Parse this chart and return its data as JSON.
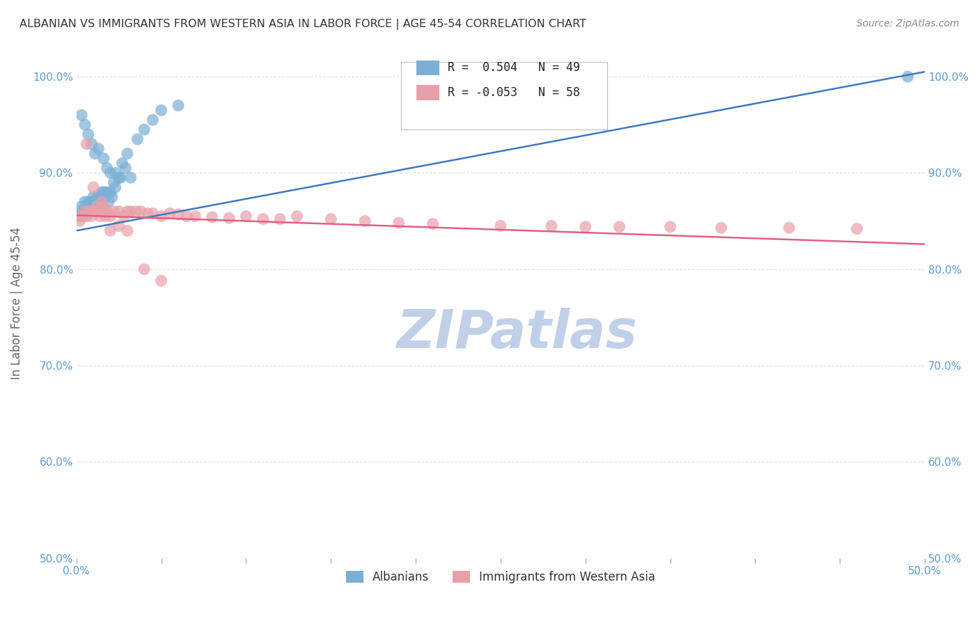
{
  "title": "ALBANIAN VS IMMIGRANTS FROM WESTERN ASIA IN LABOR FORCE | AGE 45-54 CORRELATION CHART",
  "source": "Source: ZipAtlas.com",
  "ylabel": "In Labor Force | Age 45-54",
  "xlim": [
    0.0,
    0.5
  ],
  "ylim": [
    0.5,
    1.03
  ],
  "xticks": [
    0.0,
    0.05,
    0.1,
    0.15,
    0.2,
    0.25,
    0.3,
    0.35,
    0.4,
    0.45,
    0.5
  ],
  "xtick_labels": [
    "0.0%",
    "",
    "",
    "",
    "",
    "",
    "",
    "",
    "",
    "",
    "50.0%"
  ],
  "yticks": [
    0.5,
    0.6,
    0.7,
    0.8,
    0.9,
    1.0
  ],
  "ytick_labels": [
    "50.0%",
    "60.0%",
    "70.0%",
    "80.0%",
    "90.0%",
    "100.0%"
  ],
  "blue_color": "#7bafd4",
  "pink_color": "#e8a0a8",
  "blue_line_color": "#3d78c0",
  "pink_line_color": "#e06080",
  "legend_blue_R": " 0.504",
  "legend_blue_N": "49",
  "legend_pink_R": "-0.053",
  "legend_pink_N": "58",
  "legend_label_blue": "Albanians",
  "legend_label_pink": "Immigrants from Western Asia",
  "blue_x": [
    0.001,
    0.002,
    0.003,
    0.004,
    0.005,
    0.005,
    0.006,
    0.007,
    0.007,
    0.008,
    0.009,
    0.01,
    0.01,
    0.011,
    0.012,
    0.013,
    0.014,
    0.015,
    0.015,
    0.016,
    0.017,
    0.018,
    0.019,
    0.02,
    0.021,
    0.022,
    0.023,
    0.025,
    0.027,
    0.03,
    0.003,
    0.005,
    0.007,
    0.009,
    0.011,
    0.013,
    0.016,
    0.018,
    0.02,
    0.023,
    0.026,
    0.029,
    0.032,
    0.036,
    0.04,
    0.045,
    0.05,
    0.06,
    0.49
  ],
  "blue_y": [
    0.855,
    0.86,
    0.865,
    0.855,
    0.86,
    0.87,
    0.865,
    0.86,
    0.87,
    0.865,
    0.87,
    0.875,
    0.865,
    0.87,
    0.875,
    0.87,
    0.865,
    0.88,
    0.875,
    0.88,
    0.875,
    0.88,
    0.87,
    0.88,
    0.875,
    0.89,
    0.885,
    0.895,
    0.91,
    0.92,
    0.96,
    0.95,
    0.94,
    0.93,
    0.92,
    0.925,
    0.915,
    0.905,
    0.9,
    0.9,
    0.895,
    0.905,
    0.895,
    0.935,
    0.945,
    0.955,
    0.965,
    0.97,
    1.0
  ],
  "pink_x": [
    0.002,
    0.003,
    0.004,
    0.005,
    0.006,
    0.007,
    0.008,
    0.009,
    0.01,
    0.011,
    0.012,
    0.013,
    0.014,
    0.015,
    0.016,
    0.017,
    0.018,
    0.02,
    0.022,
    0.025,
    0.028,
    0.03,
    0.032,
    0.035,
    0.038,
    0.042,
    0.045,
    0.05,
    0.055,
    0.06,
    0.065,
    0.07,
    0.08,
    0.09,
    0.1,
    0.11,
    0.12,
    0.13,
    0.15,
    0.17,
    0.19,
    0.21,
    0.25,
    0.28,
    0.3,
    0.32,
    0.35,
    0.38,
    0.42,
    0.46,
    0.006,
    0.01,
    0.015,
    0.02,
    0.025,
    0.03,
    0.04,
    0.05
  ],
  "pink_y": [
    0.85,
    0.855,
    0.855,
    0.86,
    0.855,
    0.86,
    0.86,
    0.855,
    0.86,
    0.86,
    0.865,
    0.86,
    0.855,
    0.86,
    0.865,
    0.855,
    0.86,
    0.855,
    0.86,
    0.86,
    0.855,
    0.86,
    0.86,
    0.86,
    0.86,
    0.858,
    0.858,
    0.855,
    0.858,
    0.857,
    0.855,
    0.855,
    0.854,
    0.853,
    0.855,
    0.852,
    0.852,
    0.855,
    0.852,
    0.85,
    0.848,
    0.847,
    0.845,
    0.845,
    0.844,
    0.844,
    0.844,
    0.843,
    0.843,
    0.842,
    0.93,
    0.885,
    0.87,
    0.84,
    0.845,
    0.84,
    0.8,
    0.788
  ],
  "background_color": "#ffffff",
  "grid_color": "#dddddd",
  "title_color": "#333333",
  "axis_label_color": "#666666",
  "tick_color": "#5b9bd5",
  "watermark": "ZIPatlas",
  "watermark_color": "#c0d0e8"
}
